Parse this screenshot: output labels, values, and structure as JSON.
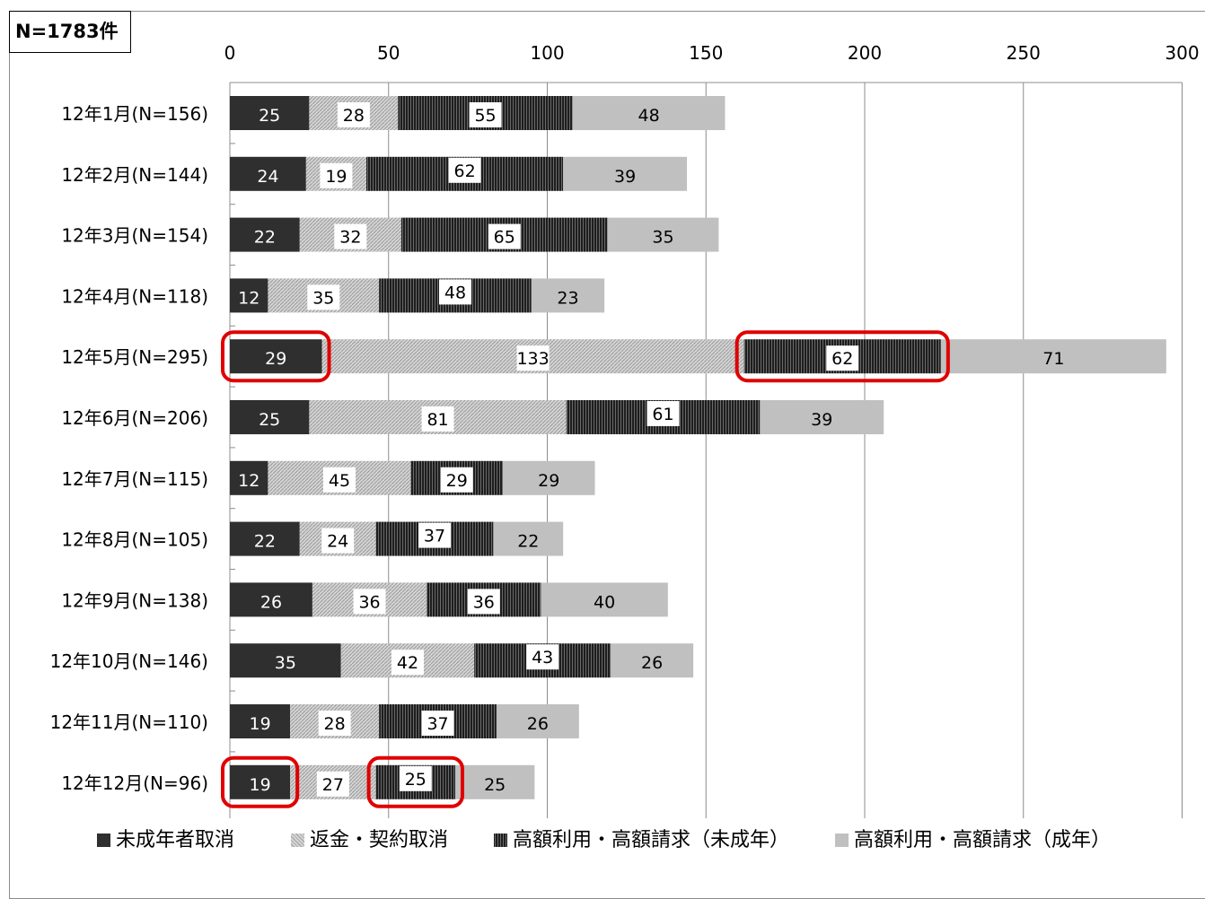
{
  "header": {
    "total_label": "N=1783件"
  },
  "colors": {
    "minor_cancel": "#3a3a3a",
    "refund": "#c8c8c8",
    "high_minor": "#2b2b2b",
    "high_adult": "#bfbfbf",
    "highlight": "#e00000",
    "grid": "#8c8c8c"
  },
  "chart_data": {
    "type": "bar",
    "orientation": "horizontal",
    "stacked": true,
    "categories": [
      "12年1月(N=156)",
      "12年2月(N=144)",
      "12年3月(N=154)",
      "12年4月(N=118)",
      "12年5月(N=295)",
      "12年6月(N=206)",
      "12年7月(N=115)",
      "12年8月(N=105)",
      "12年9月(N=138)",
      "12年10月(N=146)",
      "12年11月(N=110)",
      "12年12月(N=96)"
    ],
    "series": [
      {
        "name": "未成年者取消",
        "values": [
          25,
          24,
          22,
          12,
          29,
          25,
          12,
          22,
          26,
          35,
          19,
          19
        ]
      },
      {
        "name": "返金・契約取消",
        "values": [
          28,
          19,
          32,
          35,
          133,
          81,
          45,
          24,
          36,
          42,
          28,
          27
        ]
      },
      {
        "name": "高額利用・高額請求（未成年）",
        "values": [
          55,
          62,
          65,
          48,
          62,
          61,
          29,
          37,
          36,
          43,
          37,
          25
        ]
      },
      {
        "name": "高額利用・高額請求（成年）",
        "values": [
          48,
          39,
          35,
          23,
          71,
          39,
          29,
          22,
          40,
          26,
          26,
          25
        ]
      }
    ],
    "xlim": [
      0,
      300
    ],
    "xticks": [
      0,
      50,
      100,
      150,
      200,
      250,
      300
    ],
    "grid": true,
    "legend": "bottom",
    "highlights": [
      {
        "category": 4,
        "series": 0
      },
      {
        "category": 4,
        "series": 2
      },
      {
        "category": 11,
        "series": 0
      },
      {
        "category": 11,
        "series": 2
      }
    ]
  }
}
